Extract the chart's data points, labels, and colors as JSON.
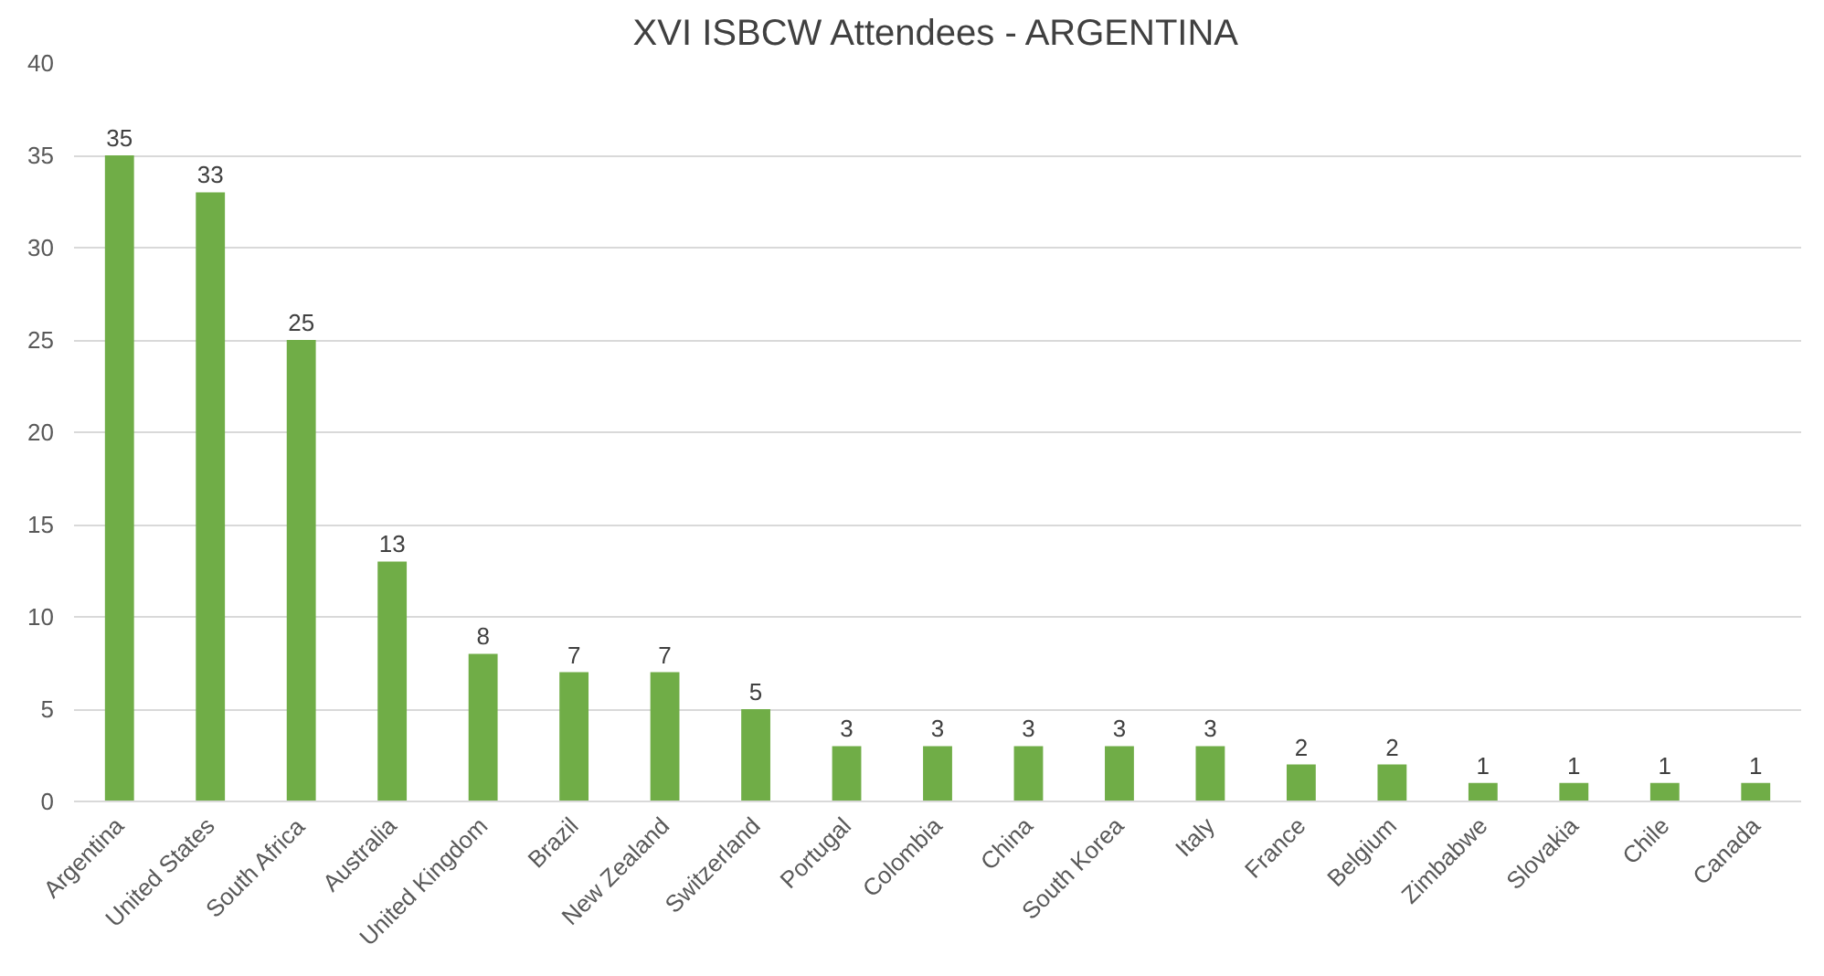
{
  "chart_data": {
    "type": "bar",
    "title": "XVI ISBCW Attendees - ARGENTINA",
    "categories": [
      "Argentina",
      "United States",
      "South Africa",
      "Australia",
      "United Kingdom",
      "Brazil",
      "New Zealand",
      "Switzerland",
      "Portugal",
      "Colombia",
      "China",
      "South Korea",
      "Italy",
      "France",
      "Belgium",
      "Zimbabwe",
      "Slovakia",
      "Chile",
      "Canada"
    ],
    "values": [
      35,
      33,
      25,
      13,
      8,
      7,
      7,
      5,
      3,
      3,
      3,
      3,
      3,
      2,
      2,
      1,
      1,
      1,
      1
    ],
    "color": "#70ad47",
    "ylim": [
      0,
      40
    ],
    "yticks": [
      0,
      5,
      10,
      15,
      20,
      25,
      30,
      35,
      40
    ],
    "grid": "y",
    "data_labels": true
  }
}
